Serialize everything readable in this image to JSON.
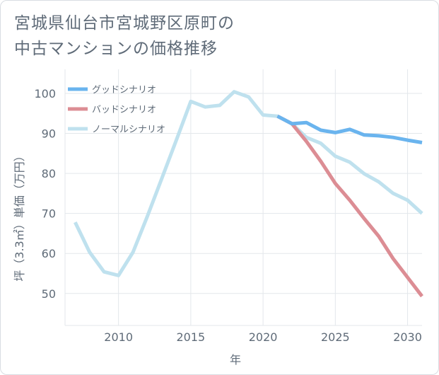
{
  "title": {
    "line1": "宮城県仙台市宮城野区原町の",
    "line2": "中古マンションの価格推移"
  },
  "chart_data": {
    "type": "line",
    "xlabel": "年",
    "ylabel": "坪（3.3㎡）単価（万円）",
    "xlim": [
      2006.3,
      2031
    ],
    "ylim": [
      42,
      106
    ],
    "xticks": [
      2010,
      2015,
      2020,
      2025,
      2030
    ],
    "yticks": [
      50,
      60,
      70,
      80,
      90,
      100
    ],
    "grid": true,
    "legend_position": "top-left",
    "series": [
      {
        "name": "グッドシナリオ",
        "color": "#6ab4ee",
        "x": [
          2021,
          2022,
          2023,
          2024,
          2025,
          2026,
          2027,
          2028,
          2029,
          2030,
          2031
        ],
        "values": [
          94.3,
          92.4,
          92.7,
          90.8,
          90.2,
          91.0,
          89.6,
          89.4,
          89.0,
          88.3,
          87.7
        ]
      },
      {
        "name": "バッドシナリオ",
        "color": "#dc8d94",
        "x": [
          2021,
          2022,
          2023,
          2024,
          2025,
          2026,
          2027,
          2028,
          2029,
          2030,
          2031
        ],
        "values": [
          94.3,
          92.4,
          88.0,
          83.0,
          77.5,
          73.3,
          68.7,
          64.3,
          58.7,
          54.0,
          49.3
        ]
      },
      {
        "name": "ノーマルシナリオ",
        "color": "#bfe1ee",
        "x": [
          2007,
          2008,
          2009,
          2010,
          2011,
          2012,
          2013,
          2014,
          2015,
          2016,
          2017,
          2018,
          2019,
          2020,
          2021,
          2022,
          2023,
          2024,
          2025,
          2026,
          2027,
          2028,
          2029,
          2030,
          2031
        ],
        "values": [
          67.8,
          60.3,
          55.4,
          54.5,
          60.3,
          69.3,
          78.8,
          88.3,
          98.0,
          96.6,
          97.0,
          100.4,
          99.1,
          94.6,
          94.3,
          92.4,
          89.0,
          87.5,
          84.3,
          82.8,
          79.9,
          77.9,
          75.0,
          73.3,
          70.0
        ]
      }
    ]
  }
}
